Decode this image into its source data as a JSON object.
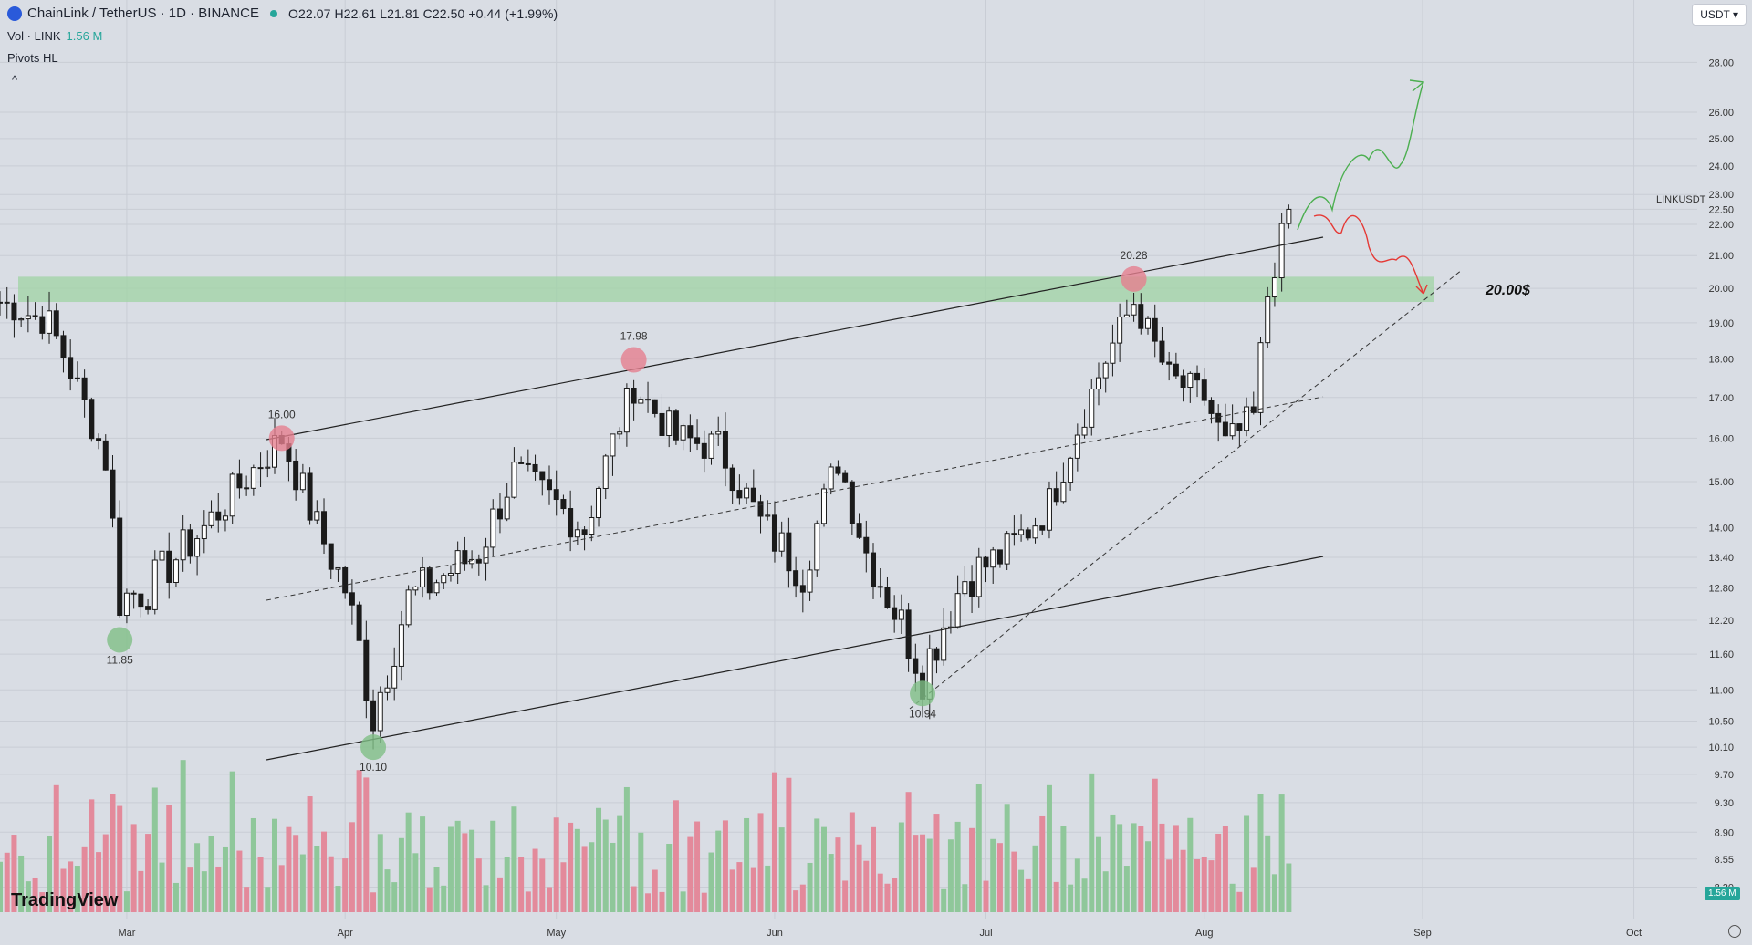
{
  "header": {
    "title": "ChainLink / TetherUS · 1D · BINANCE",
    "ohlc": "O22.07 H22.61 L21.81 C22.50 +0.44 (+1.99%)"
  },
  "volume_indicator": {
    "label": "Vol · LINK",
    "value": "1.56 M"
  },
  "pivots_label": "Pivots HL",
  "collapse_icon": "^",
  "currency_selector": "USDT ▾",
  "pair_label": "LINKUSDT",
  "volume_badge": "1.56 M",
  "brand": "TradingView",
  "chart_data": {
    "type": "candlestick",
    "x_ticks": [
      "Mar",
      "Apr",
      "May",
      "Jun",
      "Jul",
      "Aug",
      "Sep",
      "Oct"
    ],
    "y_ticks": [
      "28.00",
      "26.00",
      "25.00",
      "24.00",
      "23.00",
      "22.50",
      "22.00",
      "21.00",
      "20.00",
      "19.00",
      "18.00",
      "17.00",
      "16.00",
      "15.00",
      "14.00",
      "13.40",
      "12.80",
      "12.20",
      "11.60",
      "11.00",
      "10.50",
      "10.10",
      "9.70",
      "9.30",
      "8.90",
      "8.55",
      "8.20"
    ],
    "y_scale": "log",
    "ylim": [
      7.9,
      29.5
    ],
    "xlim": [
      "2023-02-11",
      "2023-10-10"
    ],
    "pivot_labels": [
      {
        "date": "2023-02-28",
        "price": 11.85,
        "text": "11.85"
      },
      {
        "date": "2023-03-23",
        "price": 16.0,
        "text": "16.00"
      },
      {
        "date": "2023-04-05",
        "price": 10.1,
        "text": "10.10"
      },
      {
        "date": "2023-05-12",
        "price": 17.98,
        "text": "17.98"
      },
      {
        "date": "2023-06-22",
        "price": 10.94,
        "text": "10.94"
      },
      {
        "date": "2023-07-22",
        "price": 20.28,
        "text": "20.28"
      }
    ],
    "annotation": "20.00$",
    "resistance_zone": [
      19.6,
      20.35
    ],
    "colors": {
      "up": "#1b1b1b",
      "down": "#1b1b1b",
      "vol_up": "#8fc79a",
      "vol_down": "#e38a9b",
      "zone": "#9fd3a4",
      "bull_path": "#4caf50",
      "bear_path": "#e53935"
    }
  }
}
